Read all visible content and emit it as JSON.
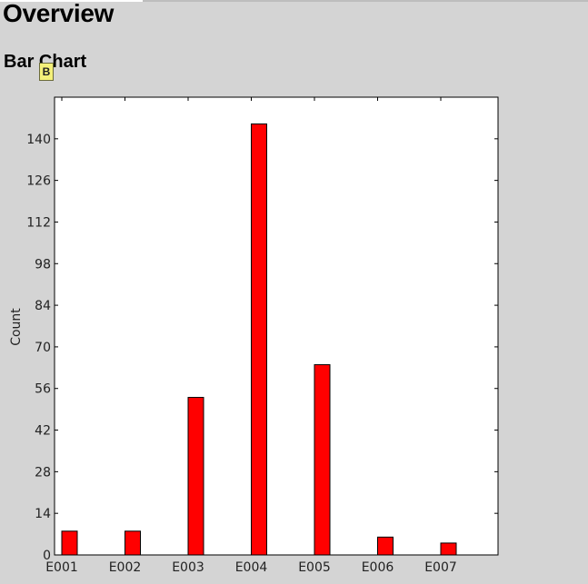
{
  "page": {
    "title": "Overview",
    "section_title": "Bar Chart",
    "badge_text": "B"
  },
  "chart_data": {
    "type": "bar",
    "categories": [
      "E001",
      "E002",
      "E003",
      "E004",
      "E005",
      "E006",
      "E007"
    ],
    "values": [
      8,
      8,
      53,
      145,
      64,
      6,
      4
    ],
    "title": "",
    "xlabel": "",
    "ylabel": "Count",
    "ylim": [
      0,
      154
    ],
    "yticks": [
      0,
      14,
      28,
      42,
      56,
      70,
      84,
      98,
      112,
      126,
      140
    ],
    "bar_color": "#ff0000",
    "grid": false
  }
}
